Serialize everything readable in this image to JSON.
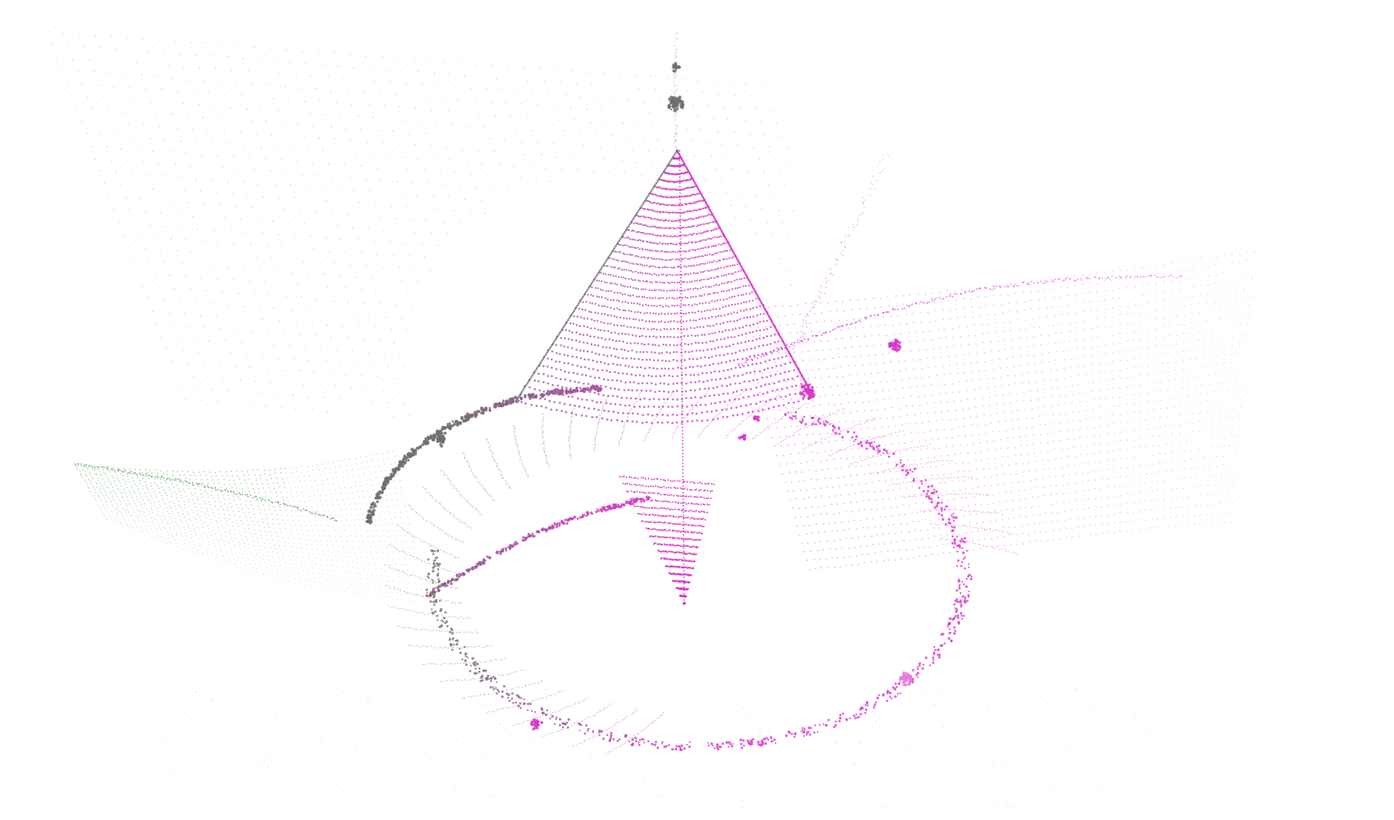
{
  "visualization": {
    "kind": "3d-point-cloud",
    "background": "#ffffff",
    "colors": {
      "gray": "#6f6f6f",
      "light_gray": "#b9b9b9",
      "magenta": "#d63ac8",
      "pink": "#e57ad9",
      "green": "#4f9a4f"
    }
  }
}
